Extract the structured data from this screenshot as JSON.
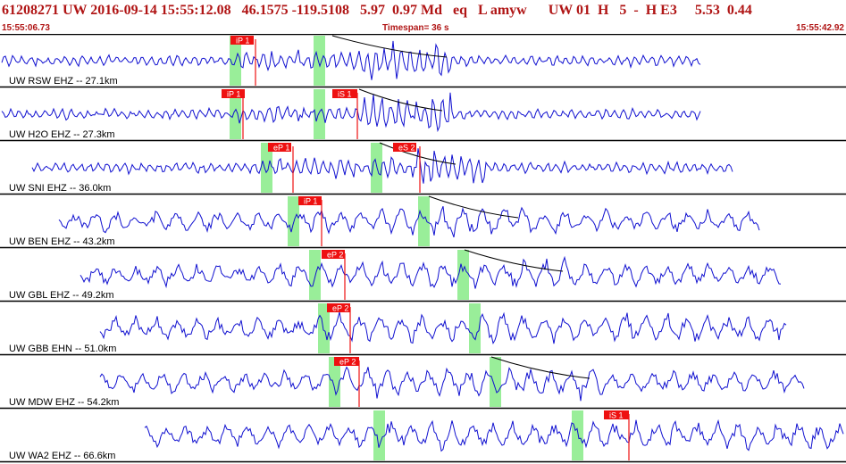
{
  "header": {
    "title": "61208271 UW 2016-09-14 15:55:12.08   46.1575 -119.5108   5.97  0.97 Md   eq   L amyw      UW 01  H   5  -  H E3     5.53  0.44",
    "time_start": "15:55:06.73",
    "timespan": "Timespan=  36 s",
    "time_end": "15:55:42.92"
  },
  "colors": {
    "waveform": "#1010d0",
    "pick_fill": "#ee1111",
    "pick_text": "#ffffff",
    "window": "#99ee99",
    "title": "#b01515",
    "grid": "#000000"
  },
  "traces": [
    {
      "label": "UW RSW EHZ -- 27.1km",
      "p_pick": "iP 1",
      "s_pick": "",
      "seed": 3
    },
    {
      "label": "UW H2O EHZ -- 27.3km",
      "p_pick": "iP 1",
      "s_pick": "iS 1",
      "seed": 7
    },
    {
      "label": "UW SNI EHZ -- 36.0km",
      "p_pick": "eP 1",
      "s_pick": "eS 2",
      "seed": 11
    },
    {
      "label": "UW BEN EHZ -- 43.2km",
      "p_pick": "iP 1",
      "s_pick": "",
      "seed": 17
    },
    {
      "label": "UW GBL EHZ -- 49.2km",
      "p_pick": "eP 2",
      "s_pick": "",
      "seed": 23
    },
    {
      "label": "UW GBB EHN -- 51.0km",
      "p_pick": "eP 2",
      "s_pick": "",
      "seed": 29
    },
    {
      "label": "UW MDW EHZ -- 54.2km",
      "p_pick": "eP 2",
      "s_pick": "",
      "seed": 31
    },
    {
      "label": "UW WA2 EHZ -- 66.6km",
      "p_pick": "",
      "s_pick": "iS 1",
      "seed": 37
    }
  ]
}
